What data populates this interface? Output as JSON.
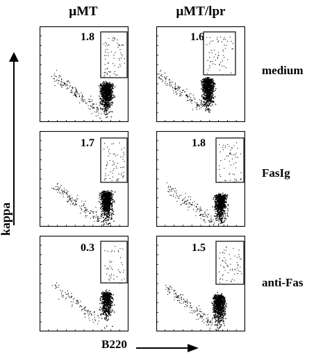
{
  "columns": [
    "μMT",
    "μMT/lpr"
  ],
  "rows": [
    "medium",
    "FasIg",
    "anti-Fas"
  ],
  "axes": {
    "y": "kappa",
    "x": "B220"
  },
  "gate_values": [
    [
      "1.8",
      "1.6"
    ],
    [
      "1.7",
      "1.8"
    ],
    [
      "0.3",
      "1.5"
    ]
  ]
}
